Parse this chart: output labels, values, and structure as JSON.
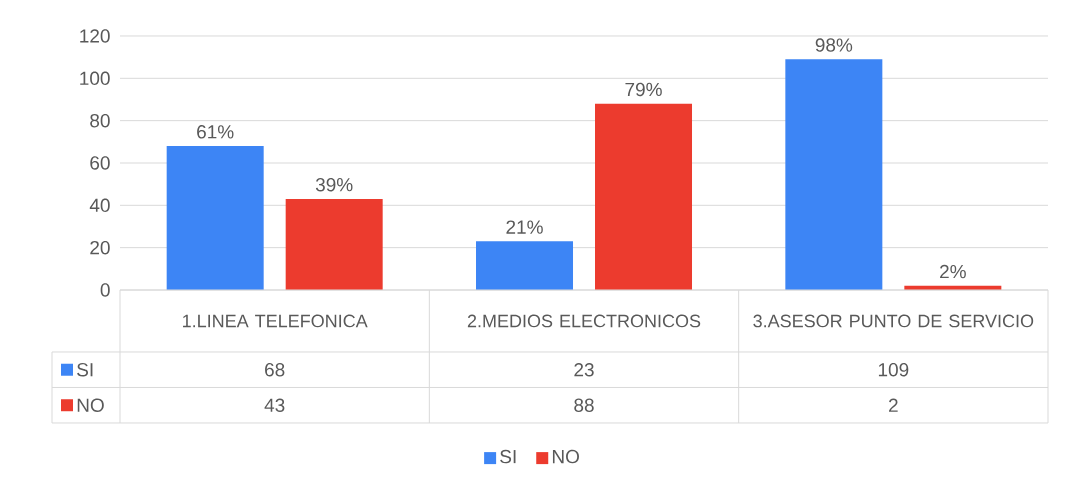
{
  "chart_data": {
    "type": "bar",
    "categories": [
      "1.LINEA TELEFONICA",
      "2.MEDIOS ELECTRONICOS",
      "3.ASESOR PUNTO DE SERVICIO"
    ],
    "series": [
      {
        "name": "SI",
        "color": "#3d85f5",
        "values": [
          68,
          23,
          109
        ],
        "value_labels": [
          "68",
          "23",
          "109"
        ]
      },
      {
        "name": "NO",
        "color": "#ec3b2e",
        "values": [
          43,
          88,
          2
        ],
        "value_labels": [
          "43",
          "88",
          "2"
        ]
      }
    ],
    "annotations": [
      "61%",
      "39%",
      "21%",
      "79%",
      "98%",
      "2%"
    ],
    "ylim": [
      0,
      120
    ],
    "yticks": [
      0,
      20,
      40,
      60,
      80,
      100,
      120
    ],
    "grid": "y",
    "legend": "bottom",
    "data_labels": true
  }
}
